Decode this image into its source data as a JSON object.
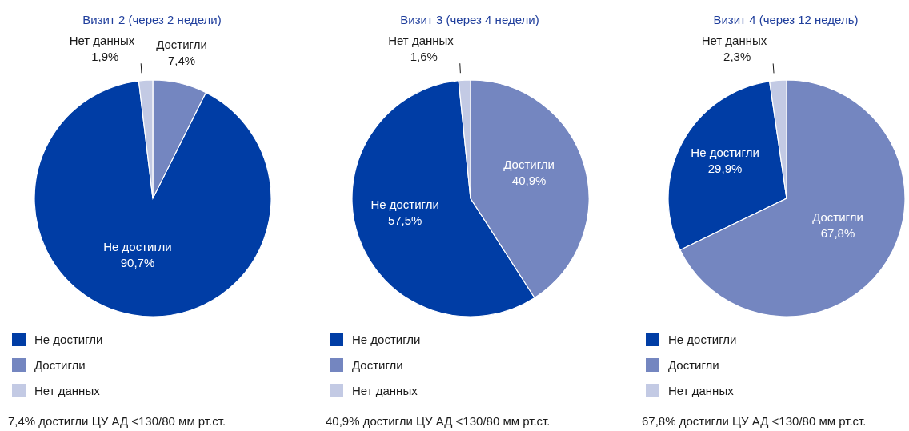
{
  "chart_data": [
    {
      "type": "pie",
      "title": "Визит 2 (через 2 недели)",
      "categories": [
        "Не достигли",
        "Достигли",
        "Нет данных"
      ],
      "values": [
        90.7,
        7.4,
        1.9
      ],
      "value_labels": [
        "90,7%",
        "7,4%",
        "1,9%"
      ],
      "colors": [
        "#003da5",
        "#7486c0",
        "#c3cae4"
      ],
      "legend": "bottom",
      "annotations": [
        "7,4% достигли ЦУ АД <130/80 мм рт.ст."
      ]
    },
    {
      "type": "pie",
      "title": "Визит 3 (через 4 недели)",
      "categories": [
        "Не достигли",
        "Достигли",
        "Нет данных"
      ],
      "values": [
        57.5,
        40.9,
        1.6
      ],
      "value_labels": [
        "57,5%",
        "40,9%",
        "1,6%"
      ],
      "colors": [
        "#003da5",
        "#7486c0",
        "#c3cae4"
      ],
      "legend": "bottom",
      "annotations": [
        "40,9% достигли ЦУ АД <130/80 мм рт.ст."
      ]
    },
    {
      "type": "pie",
      "title": "Визит 4 (через 12 недель)",
      "categories": [
        "Не достигли",
        "Достигли",
        "Нет данных"
      ],
      "values": [
        29.9,
        67.8,
        2.3
      ],
      "value_labels": [
        "29,9%",
        "67,8%",
        "2,3%"
      ],
      "colors": [
        "#003da5",
        "#7486c0",
        "#c3cae4"
      ],
      "legend": "bottom",
      "annotations": [
        "67,8% достигли ЦУ АД <130/80 мм рт.ст."
      ]
    }
  ]
}
